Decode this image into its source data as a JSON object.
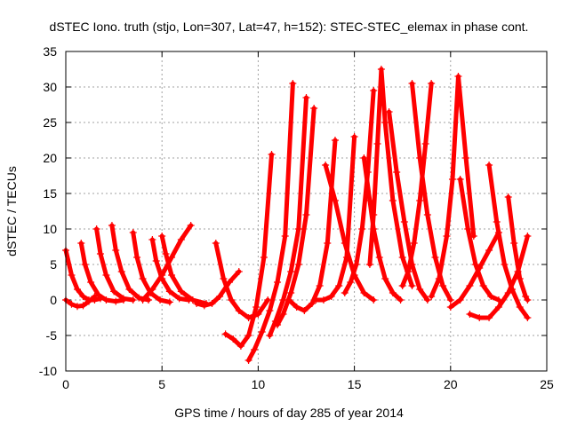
{
  "chart_data": {
    "type": "scatter",
    "title": "dSTEC Iono. truth (stjo, Lon=307, Lat=47, h=152): STEC-STEC_elemax in phase cont.",
    "xlabel": "GPS time / hours of day 285 of year 2014",
    "ylabel": "dSTEC  / TECUs",
    "xlim": [
      0,
      25
    ],
    "ylim": [
      -10,
      35
    ],
    "xticks": [
      0,
      5,
      10,
      15,
      20,
      25
    ],
    "yticks": [
      -10,
      -5,
      0,
      5,
      10,
      15,
      20,
      25,
      30,
      35
    ],
    "grid": true,
    "marker": "+",
    "color": "#ff0000",
    "series": [
      {
        "x": [
          0.0,
          0.3,
          0.6,
          0.9,
          1.2,
          1.5,
          1.8
        ],
        "y": [
          7.0,
          3.5,
          1.5,
          0.5,
          0.0,
          0.0,
          0.2
        ]
      },
      {
        "x": [
          0.0,
          0.3,
          0.6,
          0.9,
          1.2,
          1.5
        ],
        "y": [
          0.0,
          -0.6,
          -0.9,
          -0.8,
          -0.2,
          0.5
        ]
      },
      {
        "x": [
          0.8,
          1.0,
          1.3,
          1.7,
          2.1,
          2.6,
          3.0
        ],
        "y": [
          8.0,
          5.0,
          2.5,
          0.7,
          0.0,
          -0.2,
          0.0
        ]
      },
      {
        "x": [
          1.6,
          1.8,
          2.1,
          2.5,
          3.0,
          3.5
        ],
        "y": [
          10.0,
          6.5,
          3.5,
          1.2,
          0.2,
          0.0
        ]
      },
      {
        "x": [
          2.4,
          2.6,
          2.9,
          3.3,
          3.8,
          4.3
        ],
        "y": [
          10.5,
          7.0,
          4.0,
          1.5,
          0.3,
          0.0
        ]
      },
      {
        "x": [
          3.5,
          3.7,
          4.0,
          4.4,
          4.9,
          5.4
        ],
        "y": [
          9.5,
          6.0,
          3.0,
          1.0,
          0.0,
          -0.3
        ]
      },
      {
        "x": [
          4.5,
          4.7,
          5.0,
          5.4,
          5.9,
          6.4
        ],
        "y": [
          8.5,
          5.5,
          3.0,
          1.2,
          0.2,
          0.0
        ]
      },
      {
        "x": [
          5.0,
          5.2,
          5.5,
          6.0,
          6.6,
          7.3
        ],
        "y": [
          9.0,
          6.5,
          3.5,
          1.2,
          0.0,
          -0.5
        ]
      },
      {
        "x": [
          4.0,
          4.5,
          5.0,
          5.5,
          6.0,
          6.5
        ],
        "y": [
          0.0,
          1.5,
          3.5,
          6.0,
          8.5,
          10.5
        ]
      },
      {
        "x": [
          6.8,
          7.2,
          7.6,
          8.0,
          8.5,
          9.0
        ],
        "y": [
          -0.5,
          -0.8,
          -0.5,
          0.5,
          2.5,
          4.0
        ]
      },
      {
        "x": [
          7.8,
          8.2,
          8.6,
          9.0,
          9.5,
          10.0,
          10.5
        ],
        "y": [
          8.0,
          3.0,
          0.0,
          -1.5,
          -2.5,
          -2.0,
          0.0
        ]
      },
      {
        "x": [
          8.3,
          8.7,
          9.1,
          9.5,
          9.9,
          10.3,
          10.7
        ],
        "y": [
          -4.8,
          -5.5,
          -6.5,
          -5.0,
          -1.0,
          6.0,
          20.5
        ]
      },
      {
        "x": [
          9.5,
          9.8,
          10.2,
          10.6,
          11.0,
          11.4,
          11.8
        ],
        "y": [
          -8.5,
          -7.0,
          -4.5,
          -1.5,
          2.5,
          9.0,
          30.5
        ]
      },
      {
        "x": [
          10.6,
          10.9,
          11.3,
          11.7,
          12.1,
          12.5
        ],
        "y": [
          -5.0,
          -3.0,
          0.0,
          4.0,
          10.0,
          28.5
        ]
      },
      {
        "x": [
          11.0,
          11.3,
          11.7,
          12.1,
          12.5,
          12.9
        ],
        "y": [
          -3.5,
          -2.0,
          1.0,
          5.0,
          12.0,
          27.0
        ]
      },
      {
        "x": [
          11.6,
          12.0,
          12.4,
          12.8,
          13.2,
          13.6,
          14.0
        ],
        "y": [
          0.0,
          -1.0,
          -1.5,
          -0.5,
          2.0,
          8.0,
          22.5
        ]
      },
      {
        "x": [
          13.0,
          13.4,
          13.8,
          14.2,
          14.6,
          15.0
        ],
        "y": [
          0.0,
          0.0,
          0.5,
          2.0,
          6.0,
          23.0
        ]
      },
      {
        "x": [
          13.5,
          14.0,
          14.5,
          15.0,
          15.5,
          16.0
        ],
        "y": [
          19.0,
          14.0,
          8.0,
          3.5,
          1.0,
          0.0
        ]
      },
      {
        "x": [
          14.5,
          14.8,
          15.1,
          15.4,
          15.7,
          16.0
        ],
        "y": [
          1.0,
          2.5,
          5.0,
          10.0,
          18.0,
          29.5
        ]
      },
      {
        "x": [
          15.5,
          15.8,
          16.0,
          16.3,
          16.6,
          17.0,
          17.4
        ],
        "y": [
          20.0,
          14.0,
          10.0,
          6.0,
          3.0,
          1.0,
          0.0
        ]
      },
      {
        "x": [
          15.8,
          16.0,
          16.2,
          16.4,
          16.6,
          17.0,
          17.5,
          18.0
        ],
        "y": [
          5.0,
          12.0,
          22.0,
          32.5,
          25.0,
          14.0,
          6.0,
          2.0
        ]
      },
      {
        "x": [
          16.8,
          17.2,
          17.6,
          18.0,
          18.4,
          18.8
        ],
        "y": [
          26.5,
          18.0,
          11.0,
          5.0,
          1.5,
          0.0
        ]
      },
      {
        "x": [
          17.5,
          17.8,
          18.1,
          18.4,
          18.7,
          19.0
        ],
        "y": [
          2.0,
          4.0,
          8.0,
          14.0,
          22.0,
          30.5
        ]
      },
      {
        "x": [
          18.0,
          18.4,
          18.8,
          19.2,
          19.6,
          20.0
        ],
        "y": [
          30.5,
          20.0,
          12.0,
          6.0,
          2.0,
          0.0
        ]
      },
      {
        "x": [
          19.0,
          19.4,
          19.8,
          20.1,
          20.4,
          20.8,
          21.2
        ],
        "y": [
          0.5,
          3.0,
          9.0,
          17.0,
          31.5,
          20.0,
          9.0
        ]
      },
      {
        "x": [
          20.5,
          20.9,
          21.3,
          21.7,
          22.1,
          22.5
        ],
        "y": [
          17.0,
          10.0,
          5.0,
          2.0,
          0.5,
          0.0
        ]
      },
      {
        "x": [
          20.0,
          20.5,
          21.0,
          21.5,
          22.0,
          22.5
        ],
        "y": [
          -1.0,
          0.0,
          2.0,
          4.5,
          7.0,
          9.5
        ]
      },
      {
        "x": [
          22.0,
          22.4,
          22.8,
          23.2,
          23.6,
          24.0
        ],
        "y": [
          19.0,
          11.0,
          5.0,
          1.5,
          -1.0,
          -2.5
        ]
      },
      {
        "x": [
          23.0,
          23.3,
          23.6,
          23.9,
          24.0
        ],
        "y": [
          14.5,
          8.0,
          3.0,
          0.5,
          0.0
        ]
      },
      {
        "x": [
          21.0,
          21.5,
          22.0,
          22.5,
          23.0,
          23.5,
          24.0
        ],
        "y": [
          -2.0,
          -2.5,
          -2.5,
          -1.0,
          1.0,
          4.0,
          9.0
        ]
      }
    ]
  }
}
